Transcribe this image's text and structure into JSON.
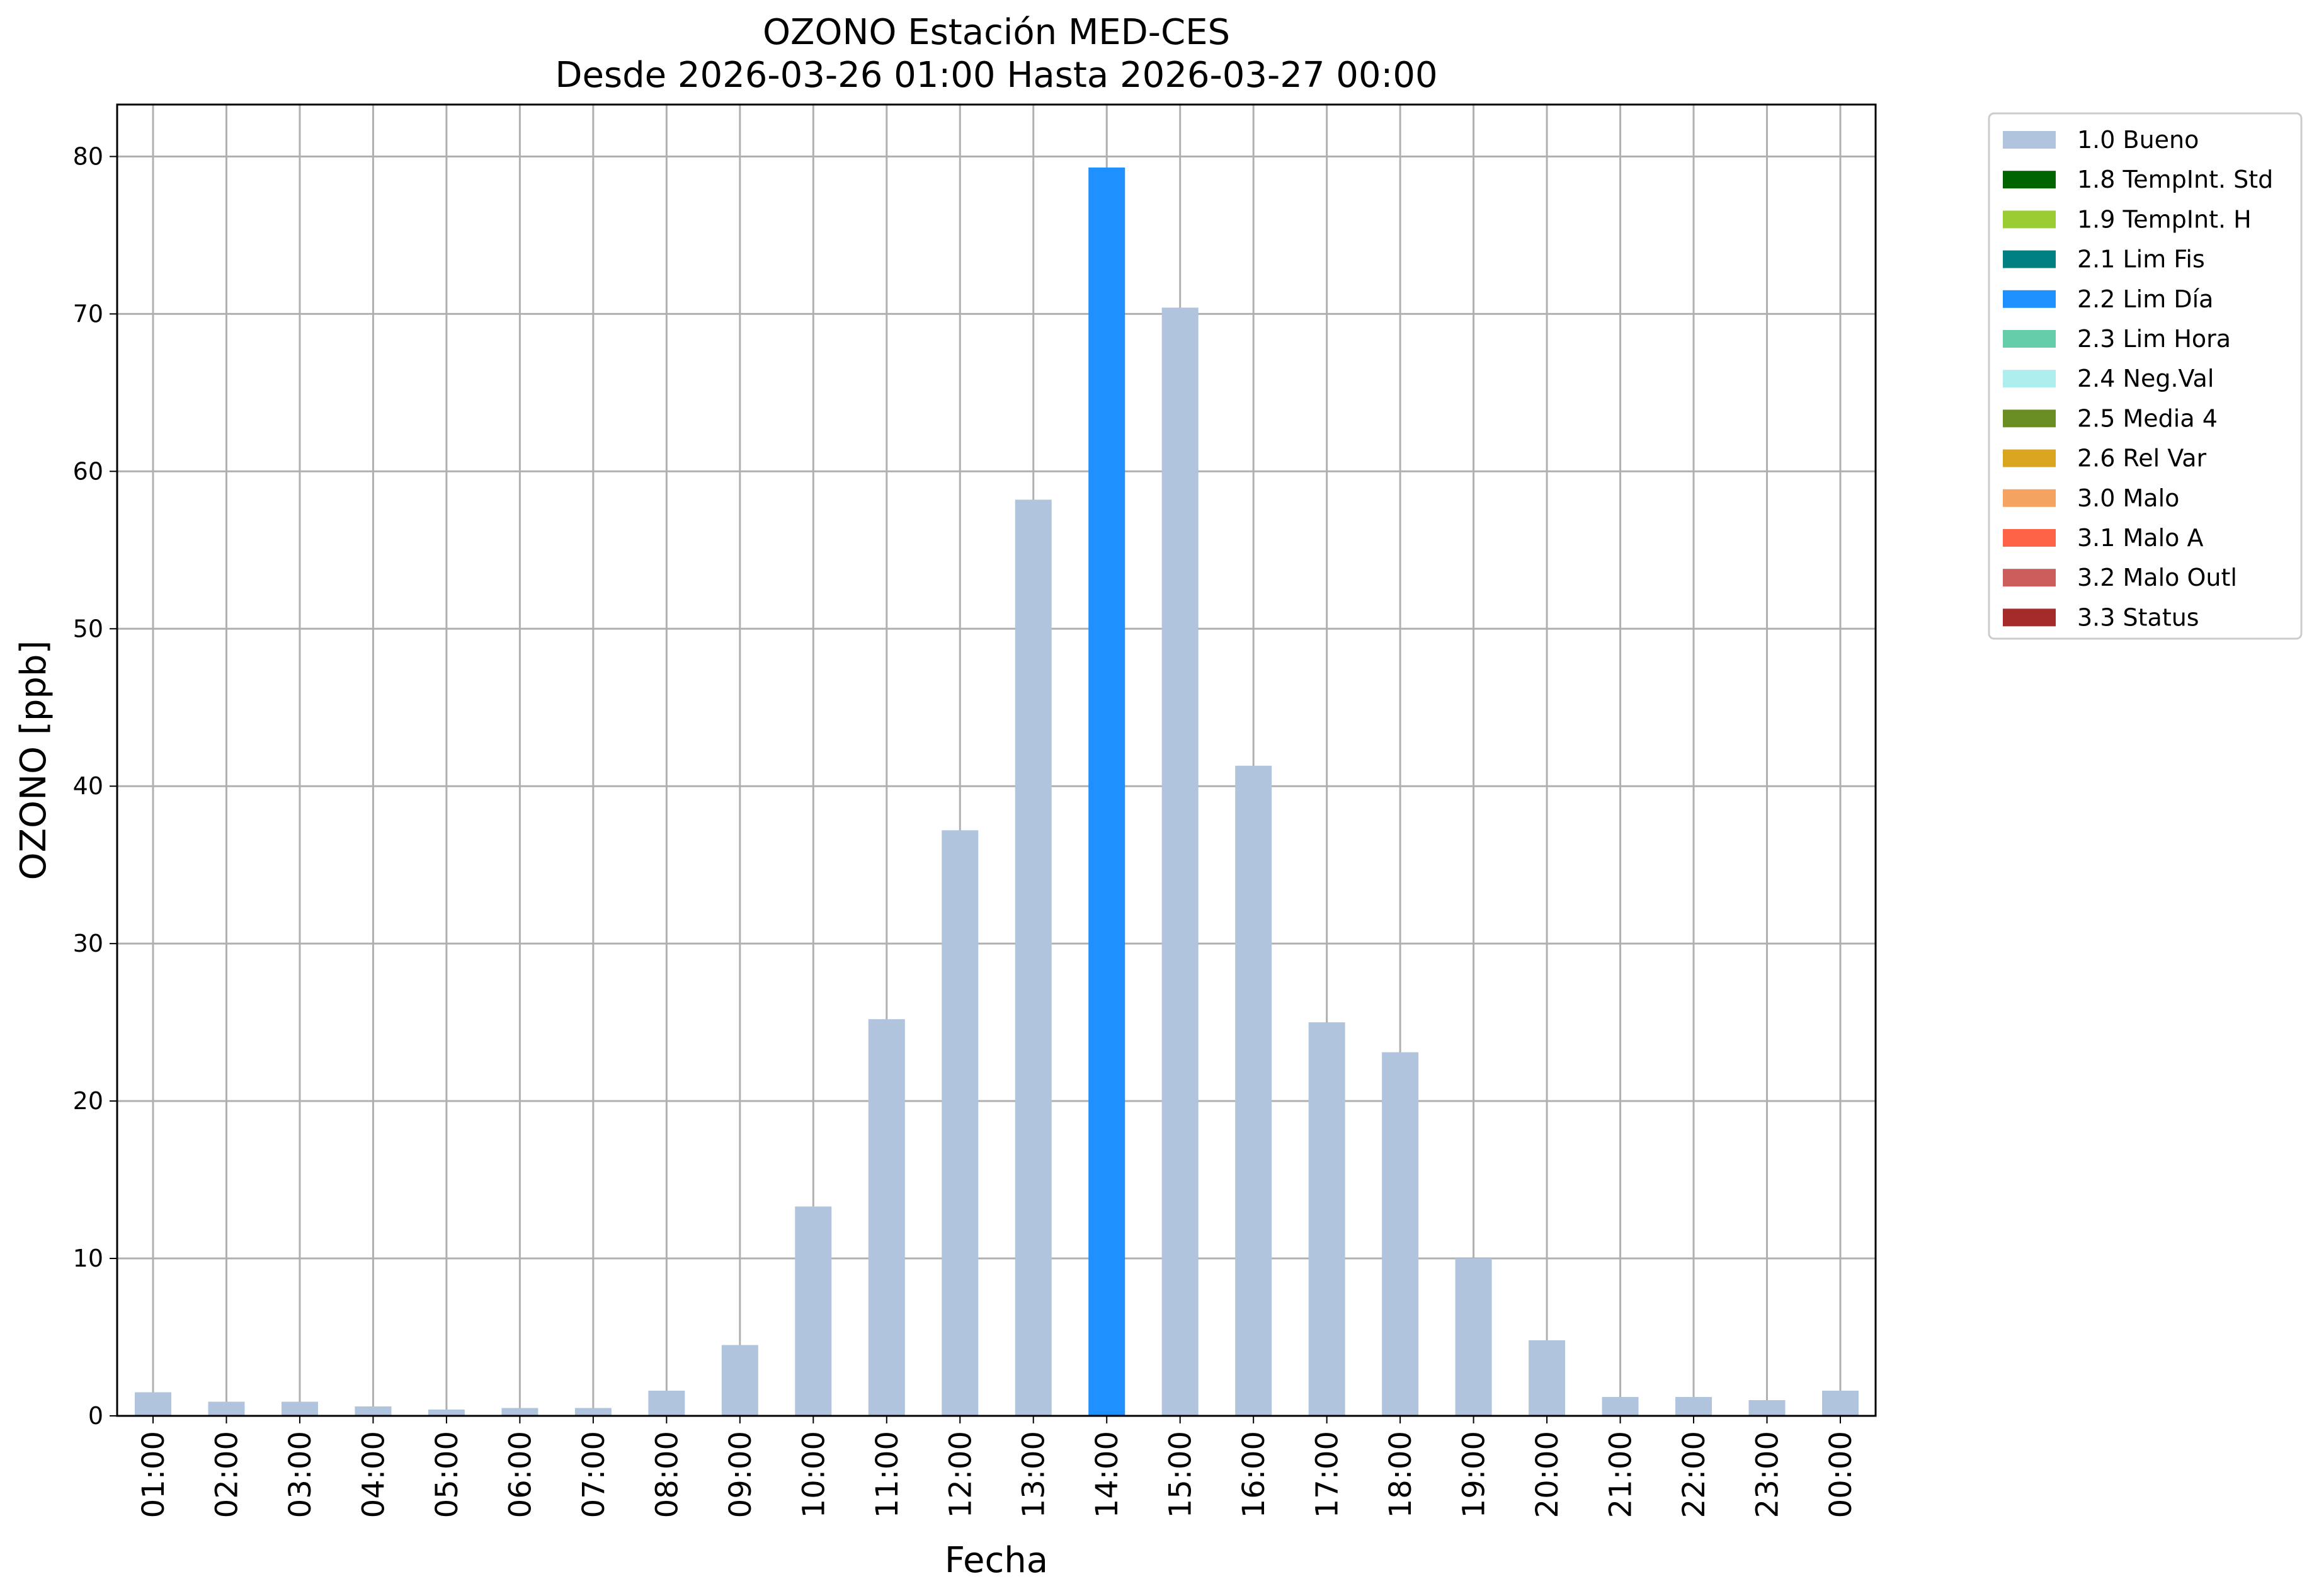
{
  "chart_data": {
    "type": "bar",
    "title": "OZONO Estación MED-CES",
    "subtitle": "Desde 2026-03-26 01:00 Hasta 2026-03-27 00:00",
    "xlabel": "Fecha",
    "ylabel": "OZONO [ppb]",
    "ylim": [
      0,
      83.3
    ],
    "yticks": [
      "0",
      "10",
      "20",
      "30",
      "40",
      "50",
      "60",
      "70",
      "80"
    ],
    "grid": true,
    "legend_position": "outside top-right",
    "categories": [
      "01:00",
      "02:00",
      "03:00",
      "04:00",
      "05:00",
      "06:00",
      "07:00",
      "08:00",
      "09:00",
      "10:00",
      "11:00",
      "12:00",
      "13:00",
      "14:00",
      "15:00",
      "16:00",
      "17:00",
      "18:00",
      "19:00",
      "20:00",
      "21:00",
      "22:00",
      "23:00",
      "00:00"
    ],
    "values": [
      1.5,
      0.9,
      0.9,
      0.6,
      0.4,
      0.5,
      0.5,
      1.6,
      4.5,
      13.3,
      25.2,
      37.2,
      58.2,
      79.3,
      70.4,
      41.3,
      25.0,
      23.1,
      10.0,
      4.8,
      1.2,
      1.2,
      1.0,
      1.6
    ],
    "flags": [
      "1.0 Bueno",
      "1.0 Bueno",
      "1.0 Bueno",
      "1.0 Bueno",
      "1.0 Bueno",
      "1.0 Bueno",
      "1.0 Bueno",
      "1.0 Bueno",
      "1.0 Bueno",
      "1.0 Bueno",
      "1.0 Bueno",
      "1.0 Bueno",
      "1.0 Bueno",
      "2.2 Lim Día",
      "1.0 Bueno",
      "1.0 Bueno",
      "1.0 Bueno",
      "1.0 Bueno",
      "1.0 Bueno",
      "1.0 Bueno",
      "1.0 Bueno",
      "1.0 Bueno",
      "1.0 Bueno",
      "1.0 Bueno"
    ],
    "legend": [
      {
        "label": "1.0 Bueno",
        "color": "#b0c4de"
      },
      {
        "label": "1.8 TempInt. Std",
        "color": "#006400"
      },
      {
        "label": "1.9 TempInt. H",
        "color": "#9acd32"
      },
      {
        "label": "2.1 Lim Fis",
        "color": "#008080"
      },
      {
        "label": "2.2 Lim Día",
        "color": "#1e90ff"
      },
      {
        "label": "2.3 Lim Hora",
        "color": "#66cdaa"
      },
      {
        "label": "2.4 Neg.Val",
        "color": "#afeeee"
      },
      {
        "label": "2.5 Media 4",
        "color": "#6b8e23"
      },
      {
        "label": "2.6 Rel Var",
        "color": "#daa520"
      },
      {
        "label": "3.0 Malo",
        "color": "#f4a460"
      },
      {
        "label": "3.1 Malo A",
        "color": "#ff6347"
      },
      {
        "label": "3.2 Malo Outl",
        "color": "#cd5c5c"
      },
      {
        "label": "3.3 Status",
        "color": "#a52a2a"
      }
    ],
    "grid_color": "#b0b0b0"
  }
}
